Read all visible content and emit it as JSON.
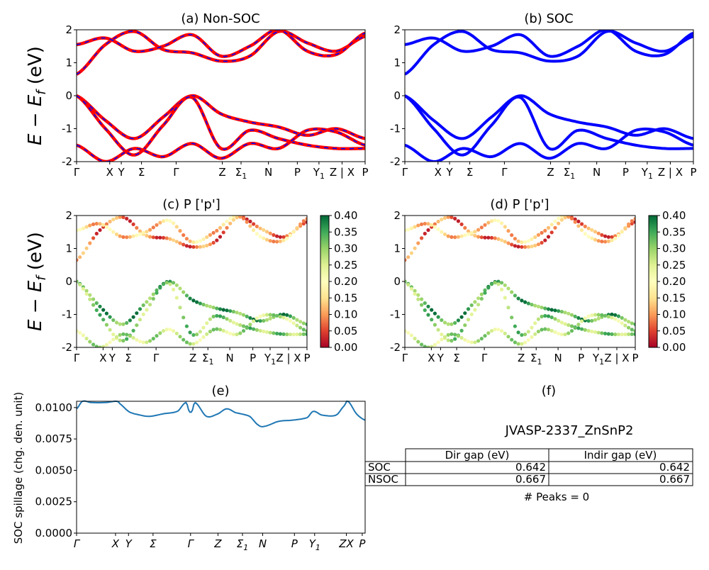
{
  "figure": {
    "material_label": "JVASP-2337_ZnSnP2",
    "peaks_text": "# Peaks = 0",
    "band_ylabel": "E − E_f (eV)",
    "spill_ylabel": "SOC spillage (chg. den. unit)"
  },
  "gap_table": {
    "columns": [
      "",
      "Dir gap (eV)",
      "Indir gap (eV)"
    ],
    "rows": [
      {
        "label": "SOC",
        "dir": "0.642",
        "indir": "0.642"
      },
      {
        "label": "NSOC",
        "dir": "0.667",
        "indir": "0.667"
      }
    ]
  },
  "colors": {
    "nonsoc_line": "#ff0000",
    "nonsoc_dash": "#0000ff",
    "soc_line": "#0000ff",
    "spill_line": "#1f77b4"
  },
  "chart_data": [
    {
      "id": "a",
      "type": "line",
      "title": "(a) Non-SOC",
      "ylim": [
        -2,
        2
      ],
      "yticks": [
        -2,
        -1,
        0,
        1,
        2
      ],
      "kpath_labels": [
        "Γ",
        "X",
        "Y",
        "Σ",
        "Γ",
        "Z",
        "Σ1",
        "N",
        "P",
        "Y1",
        "Z | X",
        "P"
      ],
      "kpath_positions": [
        0,
        0.115,
        0.155,
        0.225,
        0.345,
        0.505,
        0.57,
        0.665,
        0.765,
        0.84,
        0.92,
        1.0
      ],
      "x": [
        0,
        0.1,
        0.2,
        0.3,
        0.4,
        0.5,
        0.6,
        0.7,
        0.8,
        0.9,
        1.0
      ],
      "series": [
        {
          "values": [
            0.65,
            1.55,
            1.95,
            1.4,
            1.3,
            1.05,
            1.2,
            1.95,
            1.6,
            1.35,
            1.8
          ]
        },
        {
          "values": [
            1.55,
            1.75,
            1.35,
            1.5,
            1.85,
            1.2,
            1.5,
            2.0,
            1.35,
            1.25,
            1.9
          ]
        },
        {
          "values": [
            0.0,
            -0.75,
            -1.3,
            -0.65,
            0.0,
            -0.55,
            -0.8,
            -0.95,
            -1.2,
            -1.0,
            -1.3
          ]
        },
        {
          "values": [
            0.0,
            -1.0,
            -1.8,
            -0.9,
            -0.05,
            -1.6,
            -1.05,
            -1.3,
            -1.5,
            -1.6,
            -1.6
          ]
        },
        {
          "values": [
            -1.5,
            -2.0,
            -1.6,
            -1.85,
            -1.45,
            -1.9,
            -1.45,
            -1.6,
            -1.05,
            -1.1,
            -1.5
          ]
        }
      ]
    },
    {
      "id": "b",
      "type": "line",
      "title": "(b) SOC",
      "ylim": [
        -2,
        2
      ],
      "yticks": [
        -2,
        -1,
        0,
        1,
        2
      ],
      "kpath_labels": [
        "Γ",
        "X",
        "Y",
        "Σ",
        "Γ",
        "Z",
        "Σ1",
        "N",
        "P",
        "Y1",
        "Z | X",
        "P"
      ],
      "kpath_positions": [
        0,
        0.115,
        0.155,
        0.225,
        0.345,
        0.505,
        0.57,
        0.665,
        0.765,
        0.84,
        0.92,
        1.0
      ],
      "x": [
        0,
        0.1,
        0.2,
        0.3,
        0.4,
        0.5,
        0.6,
        0.7,
        0.8,
        0.9,
        1.0
      ],
      "series": [
        {
          "values": [
            0.65,
            1.55,
            1.95,
            1.4,
            1.3,
            1.05,
            1.2,
            1.95,
            1.6,
            1.35,
            1.8
          ]
        },
        {
          "values": [
            1.55,
            1.75,
            1.35,
            1.5,
            1.85,
            1.2,
            1.5,
            2.0,
            1.35,
            1.25,
            1.9
          ]
        },
        {
          "values": [
            0.0,
            -0.75,
            -1.3,
            -0.65,
            0.0,
            -0.55,
            -0.8,
            -0.95,
            -1.2,
            -1.0,
            -1.3
          ]
        },
        {
          "values": [
            0.0,
            -1.0,
            -1.8,
            -0.9,
            -0.05,
            -1.6,
            -1.05,
            -1.3,
            -1.5,
            -1.6,
            -1.6
          ]
        },
        {
          "values": [
            -1.5,
            -2.0,
            -1.6,
            -1.85,
            -1.45,
            -1.9,
            -1.45,
            -1.6,
            -1.05,
            -1.1,
            -1.5
          ]
        }
      ]
    },
    {
      "id": "c",
      "type": "scatter",
      "title": "(c)  P ['p']",
      "ylim": [
        -2,
        2
      ],
      "yticks": [
        -2,
        -1,
        0,
        1,
        2
      ],
      "colorbar": {
        "min": 0.0,
        "max": 0.4,
        "ticks": [
          "0.00",
          "0.05",
          "0.10",
          "0.15",
          "0.20",
          "0.25",
          "0.30",
          "0.35",
          "0.40"
        ],
        "colormap": "RdYlGn"
      },
      "kpath_labels": [
        "Γ",
        "X",
        "Y",
        "Σ",
        "Γ",
        "Z",
        "Σ1",
        "N",
        "P",
        "Y1",
        "Z | X",
        "P"
      ],
      "kpath_positions": [
        0,
        0.115,
        0.155,
        0.225,
        0.345,
        0.505,
        0.57,
        0.665,
        0.765,
        0.84,
        0.92,
        1.0
      ],
      "x": [
        0,
        0.1,
        0.2,
        0.3,
        0.4,
        0.5,
        0.6,
        0.7,
        0.8,
        0.9,
        1.0
      ],
      "bands": [
        {
          "values": [
            0.65,
            1.55,
            1.95,
            1.4,
            1.3,
            1.05,
            1.2,
            1.95,
            1.6,
            1.35,
            1.8
          ],
          "weight": 0.08
        },
        {
          "values": [
            1.55,
            1.75,
            1.35,
            1.5,
            1.85,
            1.2,
            1.5,
            2.0,
            1.35,
            1.25,
            1.9
          ],
          "weight": 0.14
        },
        {
          "values": [
            0.0,
            -0.75,
            -1.3,
            -0.65,
            0.0,
            -0.55,
            -0.8,
            -0.95,
            -1.2,
            -1.0,
            -1.3
          ],
          "weight": 0.34
        },
        {
          "values": [
            0.0,
            -1.0,
            -1.8,
            -0.9,
            -0.05,
            -1.6,
            -1.05,
            -1.3,
            -1.5,
            -1.6,
            -1.6
          ],
          "weight": 0.3
        },
        {
          "values": [
            -1.5,
            -2.0,
            -1.6,
            -1.85,
            -1.45,
            -1.9,
            -1.45,
            -1.6,
            -1.05,
            -1.1,
            -1.5
          ],
          "weight": 0.27
        }
      ]
    },
    {
      "id": "d",
      "type": "scatter",
      "title": "(d) P ['p']",
      "ylim": [
        -2,
        2
      ],
      "yticks": [
        -2,
        -1,
        0,
        1,
        2
      ],
      "colorbar": {
        "min": 0.0,
        "max": 0.4,
        "ticks": [
          "0.00",
          "0.05",
          "0.10",
          "0.15",
          "0.20",
          "0.25",
          "0.30",
          "0.35",
          "0.40"
        ],
        "colormap": "RdYlGn"
      },
      "kpath_labels": [
        "Γ",
        "X",
        "Y",
        "Σ",
        "Γ",
        "Z",
        "Σ1",
        "N",
        "P",
        "Y1",
        "Z | X",
        "P"
      ],
      "kpath_positions": [
        0,
        0.115,
        0.155,
        0.225,
        0.345,
        0.505,
        0.57,
        0.665,
        0.765,
        0.84,
        0.92,
        1.0
      ],
      "x": [
        0,
        0.1,
        0.2,
        0.3,
        0.4,
        0.5,
        0.6,
        0.7,
        0.8,
        0.9,
        1.0
      ],
      "bands": [
        {
          "values": [
            0.65,
            1.55,
            1.95,
            1.4,
            1.3,
            1.05,
            1.2,
            1.95,
            1.6,
            1.35,
            1.8
          ],
          "weight": 0.08
        },
        {
          "values": [
            1.55,
            1.75,
            1.35,
            1.5,
            1.85,
            1.2,
            1.5,
            2.0,
            1.35,
            1.25,
            1.9
          ],
          "weight": 0.14
        },
        {
          "values": [
            0.0,
            -0.75,
            -1.3,
            -0.65,
            0.0,
            -0.55,
            -0.8,
            -0.95,
            -1.2,
            -1.0,
            -1.3
          ],
          "weight": 0.34
        },
        {
          "values": [
            0.0,
            -1.0,
            -1.8,
            -0.9,
            -0.05,
            -1.6,
            -1.05,
            -1.3,
            -1.5,
            -1.6,
            -1.6
          ],
          "weight": 0.3
        },
        {
          "values": [
            -1.5,
            -2.0,
            -1.6,
            -1.85,
            -1.45,
            -1.9,
            -1.45,
            -1.6,
            -1.05,
            -1.1,
            -1.5
          ],
          "weight": 0.27
        }
      ]
    },
    {
      "id": "e",
      "type": "line",
      "title": "(e)",
      "ylim": [
        0,
        0.0105
      ],
      "yticks": [
        "0.0000",
        "0.0025",
        "0.0050",
        "0.0075",
        "0.0100"
      ],
      "ytick_values": [
        0,
        0.0025,
        0.005,
        0.0075,
        0.01
      ],
      "kpath_labels": [
        "Γ",
        "X",
        "Y",
        "Σ",
        "Γ",
        "Z",
        "Σ1",
        "N",
        "P",
        "Y1",
        "ZX",
        "P"
      ],
      "kpath_positions": [
        0,
        0.135,
        0.18,
        0.265,
        0.395,
        0.49,
        0.575,
        0.645,
        0.755,
        0.825,
        0.935,
        0.99
      ],
      "x": [
        0,
        0.02,
        0.05,
        0.1,
        0.14,
        0.15,
        0.18,
        0.2,
        0.25,
        0.3,
        0.35,
        0.38,
        0.39,
        0.4,
        0.41,
        0.45,
        0.49,
        0.52,
        0.55,
        0.6,
        0.63,
        0.65,
        0.7,
        0.75,
        0.8,
        0.82,
        0.85,
        0.9,
        0.93,
        0.94,
        0.97,
        1.0
      ],
      "values": [
        0.0099,
        0.0105,
        0.0104,
        0.0104,
        0.0105,
        0.0103,
        0.0097,
        0.0095,
        0.0093,
        0.0095,
        0.0097,
        0.0104,
        0.0097,
        0.0097,
        0.0104,
        0.0093,
        0.0095,
        0.0099,
        0.0096,
        0.0093,
        0.0086,
        0.0085,
        0.0089,
        0.009,
        0.0092,
        0.0097,
        0.0094,
        0.0094,
        0.0102,
        0.0105,
        0.0095,
        0.009
      ]
    }
  ]
}
